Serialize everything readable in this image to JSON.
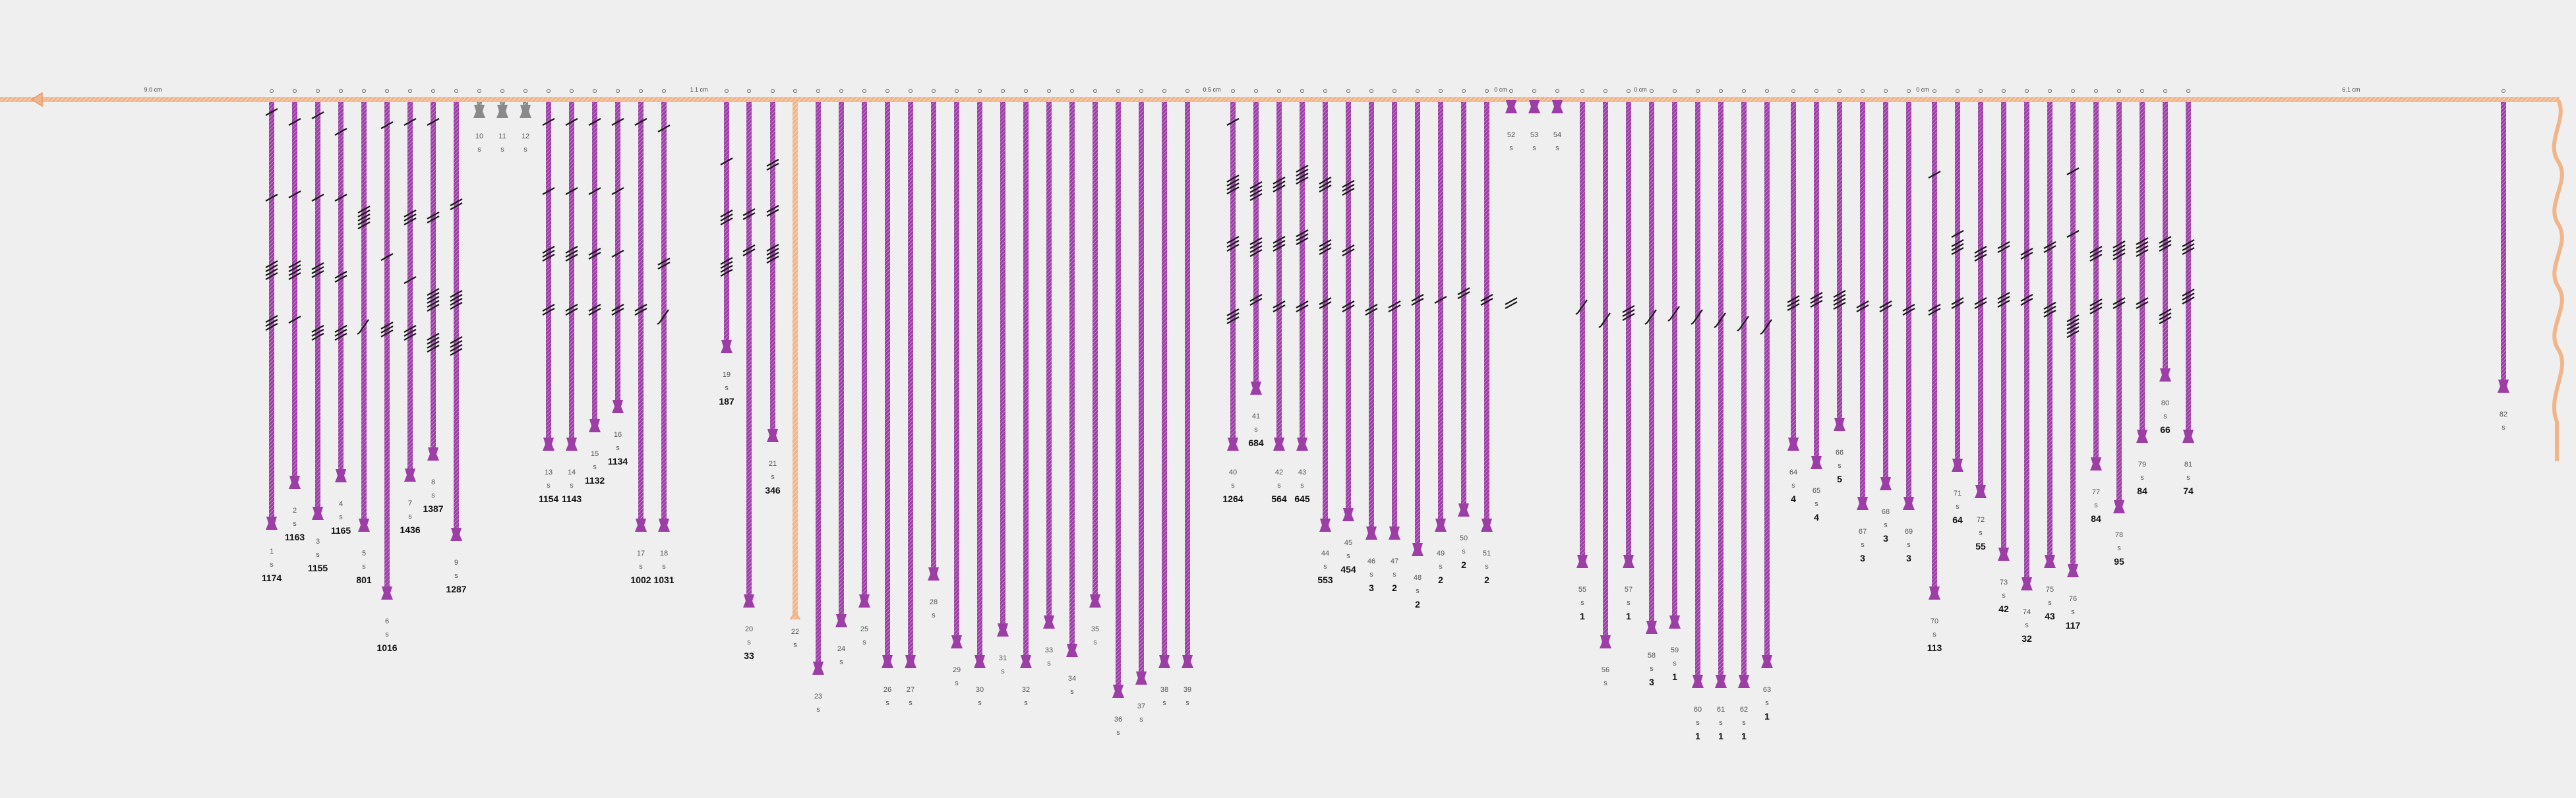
{
  "primary_cord": {
    "color": "#f2b489",
    "spacing_labels": [
      "9.0 cm",
      "1.1 cm",
      "0.5 cm",
      "0 cm",
      "0 cm",
      "0 cm",
      "6.1 cm"
    ]
  },
  "colors": {
    "cord": "#9c3ea6",
    "knot": "#1a1a1a",
    "spare_cord": "#9a9a9a",
    "top_cord": "#f2b489"
  },
  "cords": [
    {
      "n": "1",
      "s": "s",
      "total": "1174"
    },
    {
      "n": "2",
      "s": "s",
      "total": "1163"
    },
    {
      "n": "3",
      "s": "s",
      "total": "1155"
    },
    {
      "n": "4",
      "s": "s",
      "total": "1165"
    },
    {
      "n": "5",
      "s": "s",
      "total": "801"
    },
    {
      "n": "6",
      "s": "s",
      "total": "1016"
    },
    {
      "n": "7",
      "s": "s",
      "total": "1436"
    },
    {
      "n": "8",
      "s": "s",
      "total": "1387"
    },
    {
      "n": "9",
      "s": "s",
      "total": "1287"
    },
    {
      "n": "10",
      "s": "s",
      "total": ""
    },
    {
      "n": "11",
      "s": "s",
      "total": ""
    },
    {
      "n": "12",
      "s": "s",
      "total": ""
    },
    {
      "n": "13",
      "s": "s",
      "total": "1154"
    },
    {
      "n": "14",
      "s": "s",
      "total": "1143"
    },
    {
      "n": "15",
      "s": "s",
      "total": "1132"
    },
    {
      "n": "16",
      "s": "s",
      "total": "1134"
    },
    {
      "n": "17",
      "s": "s",
      "total": "1002"
    },
    {
      "n": "18",
      "s": "s",
      "total": "1031"
    },
    {
      "n": "19",
      "s": "s",
      "total": "187"
    },
    {
      "n": "20",
      "s": "s",
      "total": "33"
    },
    {
      "n": "21",
      "s": "s",
      "total": "346"
    },
    {
      "n": "22",
      "s": "s",
      "total": ""
    },
    {
      "n": "23",
      "s": "s",
      "total": ""
    },
    {
      "n": "24",
      "s": "s",
      "total": ""
    },
    {
      "n": "25",
      "s": "s",
      "total": ""
    },
    {
      "n": "26",
      "s": "s",
      "total": ""
    },
    {
      "n": "27",
      "s": "s",
      "total": ""
    },
    {
      "n": "28",
      "s": "s",
      "total": ""
    },
    {
      "n": "29",
      "s": "s",
      "total": ""
    },
    {
      "n": "30",
      "s": "s",
      "total": ""
    },
    {
      "n": "31",
      "s": "s",
      "total": ""
    },
    {
      "n": "32",
      "s": "s",
      "total": ""
    },
    {
      "n": "33",
      "s": "s",
      "total": ""
    },
    {
      "n": "34",
      "s": "s",
      "total": ""
    },
    {
      "n": "35",
      "s": "s",
      "total": ""
    },
    {
      "n": "36",
      "s": "s",
      "total": ""
    },
    {
      "n": "37",
      "s": "s",
      "total": ""
    },
    {
      "n": "38",
      "s": "s",
      "total": ""
    },
    {
      "n": "39",
      "s": "s",
      "total": ""
    },
    {
      "n": "40",
      "s": "s",
      "total": "1264"
    },
    {
      "n": "41",
      "s": "s",
      "total": "684"
    },
    {
      "n": "42",
      "s": "s",
      "total": "564"
    },
    {
      "n": "43",
      "s": "s",
      "total": "645"
    },
    {
      "n": "44",
      "s": "s",
      "total": "553"
    },
    {
      "n": "45",
      "s": "s",
      "total": "454"
    },
    {
      "n": "46",
      "s": "s",
      "total": "3"
    },
    {
      "n": "47",
      "s": "s",
      "total": "2"
    },
    {
      "n": "48",
      "s": "s",
      "total": "2"
    },
    {
      "n": "49",
      "s": "s",
      "total": "2"
    },
    {
      "n": "50",
      "s": "s",
      "total": "2"
    },
    {
      "n": "51",
      "s": "s",
      "total": "2"
    },
    {
      "n": "52",
      "s": "s",
      "total": ""
    },
    {
      "n": "53",
      "s": "s",
      "total": ""
    },
    {
      "n": "54",
      "s": "s",
      "total": ""
    },
    {
      "n": "55",
      "s": "s",
      "total": "1"
    },
    {
      "n": "56",
      "s": "s",
      "total": ""
    },
    {
      "n": "57",
      "s": "s",
      "total": "1"
    },
    {
      "n": "58",
      "s": "s",
      "total": "3"
    },
    {
      "n": "59",
      "s": "s",
      "total": "1"
    },
    {
      "n": "60",
      "s": "s",
      "total": "1"
    },
    {
      "n": "61",
      "s": "s",
      "total": "1"
    },
    {
      "n": "62",
      "s": "s",
      "total": "1"
    },
    {
      "n": "63",
      "s": "s",
      "total": "1"
    },
    {
      "n": "64",
      "s": "s",
      "total": "4"
    },
    {
      "n": "65",
      "s": "s",
      "total": "4"
    },
    {
      "n": "66",
      "s": "s",
      "total": "5"
    },
    {
      "n": "67",
      "s": "s",
      "total": "3"
    },
    {
      "n": "68",
      "s": "s",
      "total": "3"
    },
    {
      "n": "69",
      "s": "s",
      "total": "3"
    },
    {
      "n": "70",
      "s": "s",
      "total": "113"
    },
    {
      "n": "71",
      "s": "s",
      "total": "64"
    },
    {
      "n": "72",
      "s": "s",
      "total": "55"
    },
    {
      "n": "73",
      "s": "s",
      "total": "42"
    },
    {
      "n": "74",
      "s": "s",
      "total": "32"
    },
    {
      "n": "75",
      "s": "s",
      "total": "43"
    },
    {
      "n": "76",
      "s": "s",
      "total": "117"
    },
    {
      "n": "77",
      "s": "s",
      "total": "84"
    },
    {
      "n": "78",
      "s": "s",
      "total": "95"
    },
    {
      "n": "79",
      "s": "s",
      "total": "84"
    },
    {
      "n": "80",
      "s": "s",
      "total": "66"
    },
    {
      "n": "81",
      "s": "s",
      "total": "74"
    },
    {
      "n": "82",
      "s": "s",
      "total": ""
    }
  ]
}
